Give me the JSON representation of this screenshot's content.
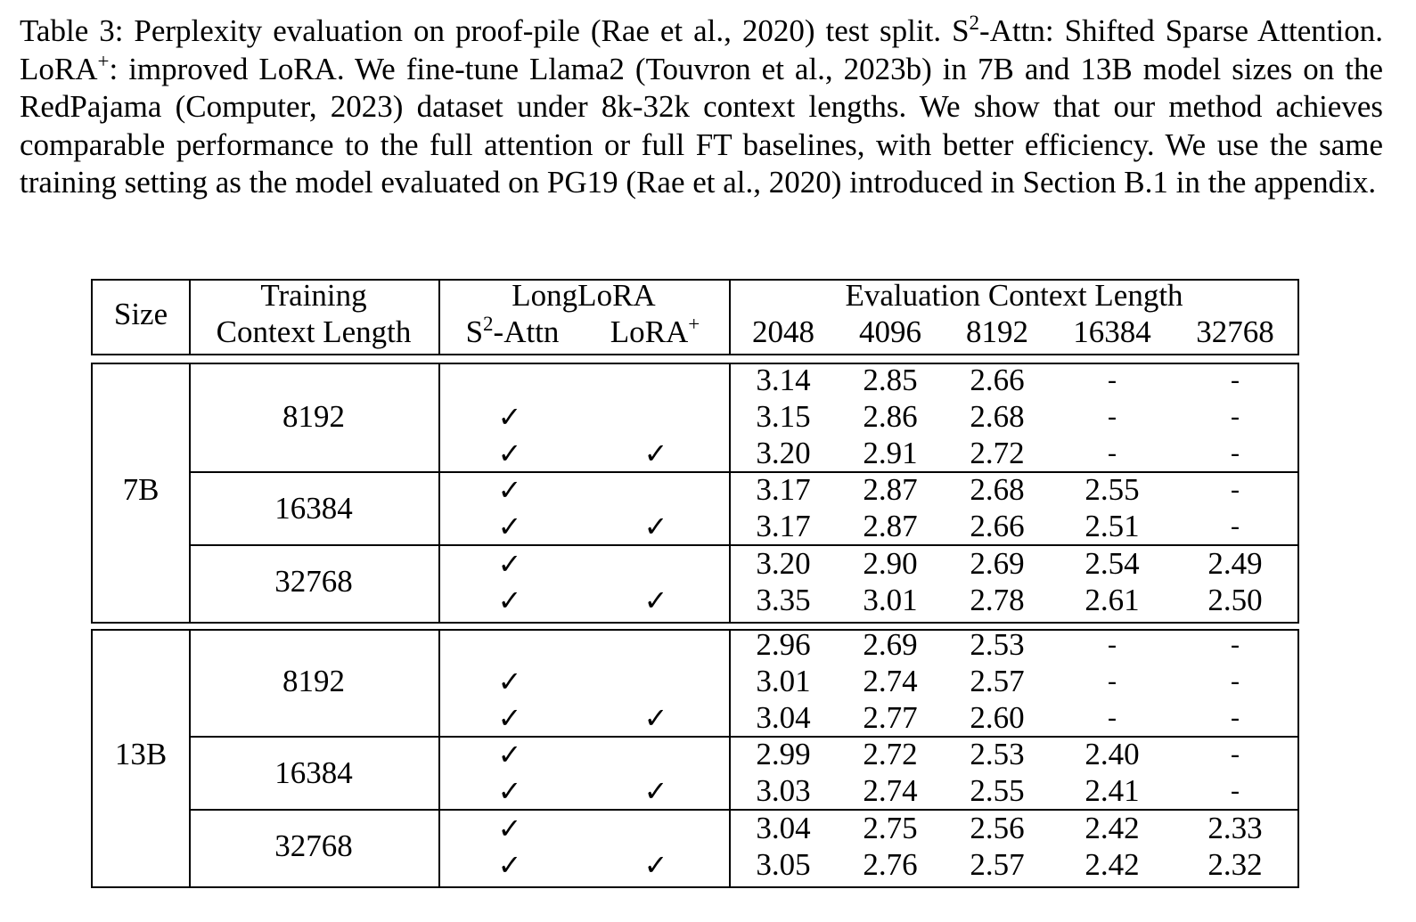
{
  "caption": {
    "lead": "Table 3: Perplexity evaluation on proof-pile (Rae et al., 2020) test split. S",
    "s2_sup": "2",
    "after_s2": "-Attn: Shifted Sparse Attention. LoRA",
    "lora_sup": "+",
    "rest": ": improved LoRA. We fine-tune Llama2 (Touvron et al., 2023b) in 7B and 13B model sizes on the RedPajama (Computer, 2023) dataset under 8k-32k context lengths. We show that our method achieves comparable performance to the full attention or full FT baselines, with better efficiency. We use the same training setting as the model evaluated on PG19 (Rae et al., 2020) introduced in Section B.1 in the appendix."
  },
  "header": {
    "size": "Size",
    "training_line1": "Training",
    "training_line2": "Context Length",
    "longlora": "LongLoRA",
    "s2attn_base": "S",
    "s2attn_sup": "2",
    "s2attn_rest": "-Attn",
    "lora_base": "LoRA",
    "lora_sup": "+",
    "eval": "Evaluation Context Length",
    "eval_cols": [
      "2048",
      "4096",
      "8192",
      "16384",
      "32768"
    ]
  },
  "check_symbol": "✓",
  "groups": [
    {
      "size": "7B",
      "blocks": [
        {
          "train": "8192",
          "rows": [
            {
              "s2": false,
              "lora": false,
              "vals": [
                "3.14",
                "2.85",
                "2.66",
                "-",
                "-"
              ]
            },
            {
              "s2": true,
              "lora": false,
              "vals": [
                "3.15",
                "2.86",
                "2.68",
                "-",
                "-"
              ]
            },
            {
              "s2": true,
              "lora": true,
              "vals": [
                "3.20",
                "2.91",
                "2.72",
                "-",
                "-"
              ]
            }
          ]
        },
        {
          "train": "16384",
          "rows": [
            {
              "s2": true,
              "lora": false,
              "vals": [
                "3.17",
                "2.87",
                "2.68",
                "2.55",
                "-"
              ]
            },
            {
              "s2": true,
              "lora": true,
              "vals": [
                "3.17",
                "2.87",
                "2.66",
                "2.51",
                "-"
              ]
            }
          ]
        },
        {
          "train": "32768",
          "rows": [
            {
              "s2": true,
              "lora": false,
              "vals": [
                "3.20",
                "2.90",
                "2.69",
                "2.54",
                "2.49"
              ]
            },
            {
              "s2": true,
              "lora": true,
              "vals": [
                "3.35",
                "3.01",
                "2.78",
                "2.61",
                "2.50"
              ]
            }
          ]
        }
      ]
    },
    {
      "size": "13B",
      "blocks": [
        {
          "train": "8192",
          "rows": [
            {
              "s2": false,
              "lora": false,
              "vals": [
                "2.96",
                "2.69",
                "2.53",
                "-",
                "-"
              ]
            },
            {
              "s2": true,
              "lora": false,
              "vals": [
                "3.01",
                "2.74",
                "2.57",
                "-",
                "-"
              ]
            },
            {
              "s2": true,
              "lora": true,
              "vals": [
                "3.04",
                "2.77",
                "2.60",
                "-",
                "-"
              ]
            }
          ]
        },
        {
          "train": "16384",
          "rows": [
            {
              "s2": true,
              "lora": false,
              "vals": [
                "2.99",
                "2.72",
                "2.53",
                "2.40",
                "-"
              ]
            },
            {
              "s2": true,
              "lora": true,
              "vals": [
                "3.03",
                "2.74",
                "2.55",
                "2.41",
                "-"
              ]
            }
          ]
        },
        {
          "train": "32768",
          "rows": [
            {
              "s2": true,
              "lora": false,
              "vals": [
                "3.04",
                "2.75",
                "2.56",
                "2.42",
                "2.33"
              ]
            },
            {
              "s2": true,
              "lora": true,
              "vals": [
                "3.05",
                "2.76",
                "2.57",
                "2.42",
                "2.32"
              ]
            }
          ]
        }
      ]
    }
  ]
}
